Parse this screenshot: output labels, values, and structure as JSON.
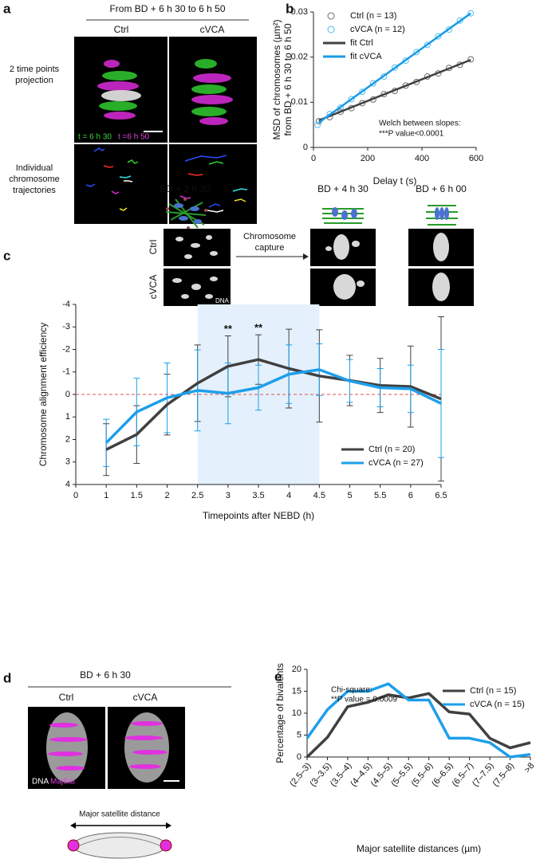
{
  "panel_a": {
    "label": "a",
    "header": "From BD + 6 h 30 to 6 h 50",
    "columns": [
      "Ctrl",
      "cVCA"
    ],
    "rows": [
      "2 time points projection",
      "Individual chromosome trajectories"
    ],
    "legend": [
      "t = 6 h 30",
      "t =6 h 50"
    ]
  },
  "panel_c_images": {
    "label": "c",
    "timepoints": [
      "BD + 2 h 30",
      "BD + 4 h 30",
      "BD + 6 h 00"
    ],
    "rows": [
      "Ctrl",
      "cVCA"
    ],
    "arrow": "Chromosome capture",
    "stain": "DNA"
  },
  "panel_d": {
    "label": "d",
    "header": "BD + 6 h 30",
    "columns": [
      "Ctrl",
      "cVCA"
    ],
    "stains": [
      "DNA",
      "MajSat"
    ],
    "diagram": "Major satellite distance"
  },
  "chart_data": [
    {
      "type": "scatter",
      "panel_label": "b",
      "ylabel": [
        "MSD of chromosomes (µm²)",
        "from BD + 6 h 30 to 6 h 50"
      ],
      "xlabel": "Delay t (s)",
      "xlim": [
        0,
        600
      ],
      "xticks": [
        0,
        200,
        400,
        600
      ],
      "ylim": [
        0,
        0.03
      ],
      "yticks": [
        0,
        0.01,
        0.02,
        0.03
      ],
      "legend": "upper left",
      "annotation": [
        "Welch between slopes:",
        "***P value<0.0001"
      ],
      "series": [
        {
          "name": "Ctrl (n = 13)",
          "style": "markers",
          "color": "#6b6b6b",
          "x": [
            20,
            60,
            100,
            140,
            180,
            220,
            260,
            300,
            340,
            380,
            420,
            460,
            500,
            540,
            580
          ],
          "values": [
            0.0058,
            0.0067,
            0.0079,
            0.0087,
            0.0098,
            0.0106,
            0.0118,
            0.0125,
            0.0137,
            0.0145,
            0.0157,
            0.0164,
            0.0176,
            0.0183,
            0.0195
          ]
        },
        {
          "name": "cVCA (n = 12)",
          "style": "markers",
          "color": "#4cbcee",
          "x": [
            15,
            60,
            100,
            140,
            180,
            220,
            260,
            300,
            340,
            380,
            420,
            460,
            500,
            540,
            580
          ],
          "values": [
            0.005,
            0.0074,
            0.0088,
            0.0107,
            0.0123,
            0.0142,
            0.0157,
            0.0177,
            0.0192,
            0.0211,
            0.0227,
            0.0246,
            0.0261,
            0.0281,
            0.0297
          ]
        },
        {
          "name": "fit Ctrl",
          "style": "line",
          "color": "#404040",
          "x": [
            20,
            580
          ],
          "values": [
            0.006,
            0.0194
          ]
        },
        {
          "name": "fit cVCA",
          "style": "line",
          "color": "#1a9be6",
          "x": [
            20,
            580
          ],
          "values": [
            0.0055,
            0.0297
          ]
        }
      ]
    },
    {
      "type": "line",
      "ylabel": "Chromosome alignment efficiency",
      "xlabel": "Timepoints after NEBD (h)",
      "categories": [
        "0",
        "1",
        "1.5",
        "2",
        "2.5",
        "3",
        "3.5",
        "4",
        "4.5",
        "5",
        "5.5",
        "6",
        "6.5"
      ],
      "ylim": [
        -4,
        4
      ],
      "y_inverted": true,
      "yticks": [
        -4,
        -3,
        -2,
        -1,
        0,
        1,
        2,
        3,
        4
      ],
      "shaded_range": [
        "2.5",
        "4.5"
      ],
      "shade_color": "#e4f1fc",
      "hline": 0,
      "hline_color": "#d9534f",
      "significance": [
        {
          "x": "3",
          "text": "**"
        },
        {
          "x": "3.5",
          "text": "**"
        }
      ],
      "legend": "lower right",
      "series": [
        {
          "name": "Ctrl (n = 20)",
          "color": "#404040",
          "values": [
            null,
            2.45,
            1.78,
            0.45,
            -0.5,
            -1.25,
            -1.55,
            -1.15,
            -0.82,
            -0.62,
            -0.4,
            -0.35,
            0.2
          ],
          "errors": [
            null,
            1.15,
            1.28,
            1.35,
            1.7,
            1.35,
            1.1,
            1.75,
            2.05,
            1.12,
            1.2,
            1.8,
            3.65
          ]
        },
        {
          "name": "cVCA (n = 27)",
          "color": "#1e9fea",
          "values": [
            null,
            2.15,
            0.78,
            0.15,
            -0.18,
            -0.05,
            -0.3,
            -0.9,
            -1.1,
            -0.6,
            -0.3,
            -0.25,
            0.4
          ],
          "errors": [
            null,
            1.05,
            1.5,
            1.55,
            1.8,
            1.35,
            1.0,
            1.3,
            1.15,
            0.95,
            0.85,
            1.05,
            2.4
          ]
        }
      ]
    },
    {
      "type": "line",
      "panel_label": "e",
      "ylabel": "Percentage of bivalents",
      "xlabel": "Major satellite distances (µm)",
      "categories": [
        "(2.5–3)",
        "(3–3.5)",
        "(3.5–4)",
        "(4–4.5)",
        "(4.5–5)",
        "(5–5.5)",
        "(5.5–6)",
        "(6–6.5)",
        "(6.5–7)",
        "(7–7.5)",
        "(7.5–8)",
        ">8"
      ],
      "ylim": [
        0,
        20
      ],
      "yticks": [
        0,
        5,
        10,
        15,
        20
      ],
      "legend": "upper right",
      "annotation": [
        "Chi-square:",
        "**P value = 0.0009"
      ],
      "series": [
        {
          "name": "Ctrl (n = 15)",
          "color": "#404040",
          "values": [
            0,
            4.5,
            11.5,
            12.5,
            14.2,
            13.5,
            14.5,
            10.3,
            9.8,
            4.3,
            2.1,
            3.3
          ]
        },
        {
          "name": "cVCA (n = 15)",
          "color": "#1e9fea",
          "values": [
            4.3,
            10.8,
            15,
            15,
            16.7,
            13,
            13,
            4.3,
            4.3,
            3.3,
            0,
            0.6
          ]
        }
      ]
    }
  ]
}
